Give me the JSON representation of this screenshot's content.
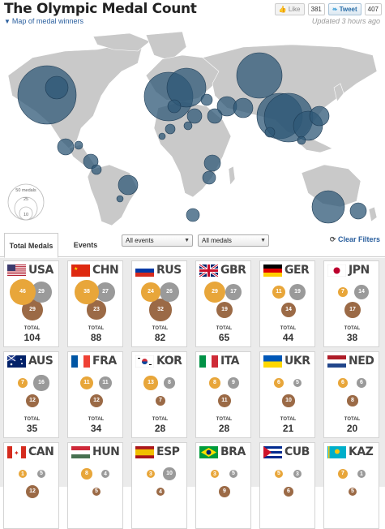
{
  "header": {
    "title": "The Olympic Medal Count",
    "map_link": "Map of medal winners",
    "updated": "Updated 3 hours ago",
    "like_label": "Like",
    "like_count": "381",
    "tweet_label": "Tweet",
    "tweet_count": "407"
  },
  "map": {
    "legend": {
      "l50": "50 medals",
      "l25": "25",
      "l10": "10"
    }
  },
  "tabs": {
    "total": "Total Medals",
    "events": "Events"
  },
  "filters": {
    "events": "All events",
    "medals": "All medals",
    "clear": "Clear Filters"
  },
  "labels": {
    "total": "TOTAL"
  },
  "colors": {
    "gold": "#e8a63a",
    "silver": "#9a9a9a",
    "bronze": "#9b6a46",
    "map_bubble": "#2f5877",
    "land": "#c9c9c9"
  },
  "countries": [
    {
      "code": "USA",
      "gold": 46,
      "silver": 29,
      "bronze": 29,
      "total": 104,
      "flag": "usa"
    },
    {
      "code": "CHN",
      "gold": 38,
      "silver": 27,
      "bronze": 23,
      "total": 88,
      "flag": "chn"
    },
    {
      "code": "RUS",
      "gold": 24,
      "silver": 26,
      "bronze": 32,
      "total": 82,
      "flag": "rus"
    },
    {
      "code": "GBR",
      "gold": 29,
      "silver": 17,
      "bronze": 19,
      "total": 65,
      "flag": "gbr"
    },
    {
      "code": "GER",
      "gold": 11,
      "silver": 19,
      "bronze": 14,
      "total": 44,
      "flag": "ger"
    },
    {
      "code": "JPN",
      "gold": 7,
      "silver": 14,
      "bronze": 17,
      "total": 38,
      "flag": "jpn"
    },
    {
      "code": "AUS",
      "gold": 7,
      "silver": 16,
      "bronze": 12,
      "total": 35,
      "flag": "aus"
    },
    {
      "code": "FRA",
      "gold": 11,
      "silver": 11,
      "bronze": 12,
      "total": 34,
      "flag": "fra"
    },
    {
      "code": "KOR",
      "gold": 13,
      "silver": 8,
      "bronze": 7,
      "total": 28,
      "flag": "kor"
    },
    {
      "code": "ITA",
      "gold": 8,
      "silver": 9,
      "bronze": 11,
      "total": 28,
      "flag": "ita"
    },
    {
      "code": "UKR",
      "gold": 6,
      "silver": 5,
      "bronze": 10,
      "total": 21,
      "flag": "ukr"
    },
    {
      "code": "NED",
      "gold": 6,
      "silver": 6,
      "bronze": 8,
      "total": 20,
      "flag": "ned"
    },
    {
      "code": "CAN",
      "gold": 1,
      "silver": 5,
      "bronze": 12,
      "total": "",
      "flag": "can"
    },
    {
      "code": "HUN",
      "gold": 8,
      "silver": 4,
      "bronze": 5,
      "total": "",
      "flag": "hun"
    },
    {
      "code": "ESP",
      "gold": 3,
      "silver": 10,
      "bronze": 4,
      "total": "",
      "flag": "esp"
    },
    {
      "code": "BRA",
      "gold": 3,
      "silver": 5,
      "bronze": 9,
      "total": "",
      "flag": "bra"
    },
    {
      "code": "CUB",
      "gold": 5,
      "silver": 3,
      "bronze": 6,
      "total": "",
      "flag": "cub"
    },
    {
      "code": "KAZ",
      "gold": 7,
      "silver": 1,
      "bronze": 5,
      "total": "",
      "flag": "kaz"
    }
  ]
}
